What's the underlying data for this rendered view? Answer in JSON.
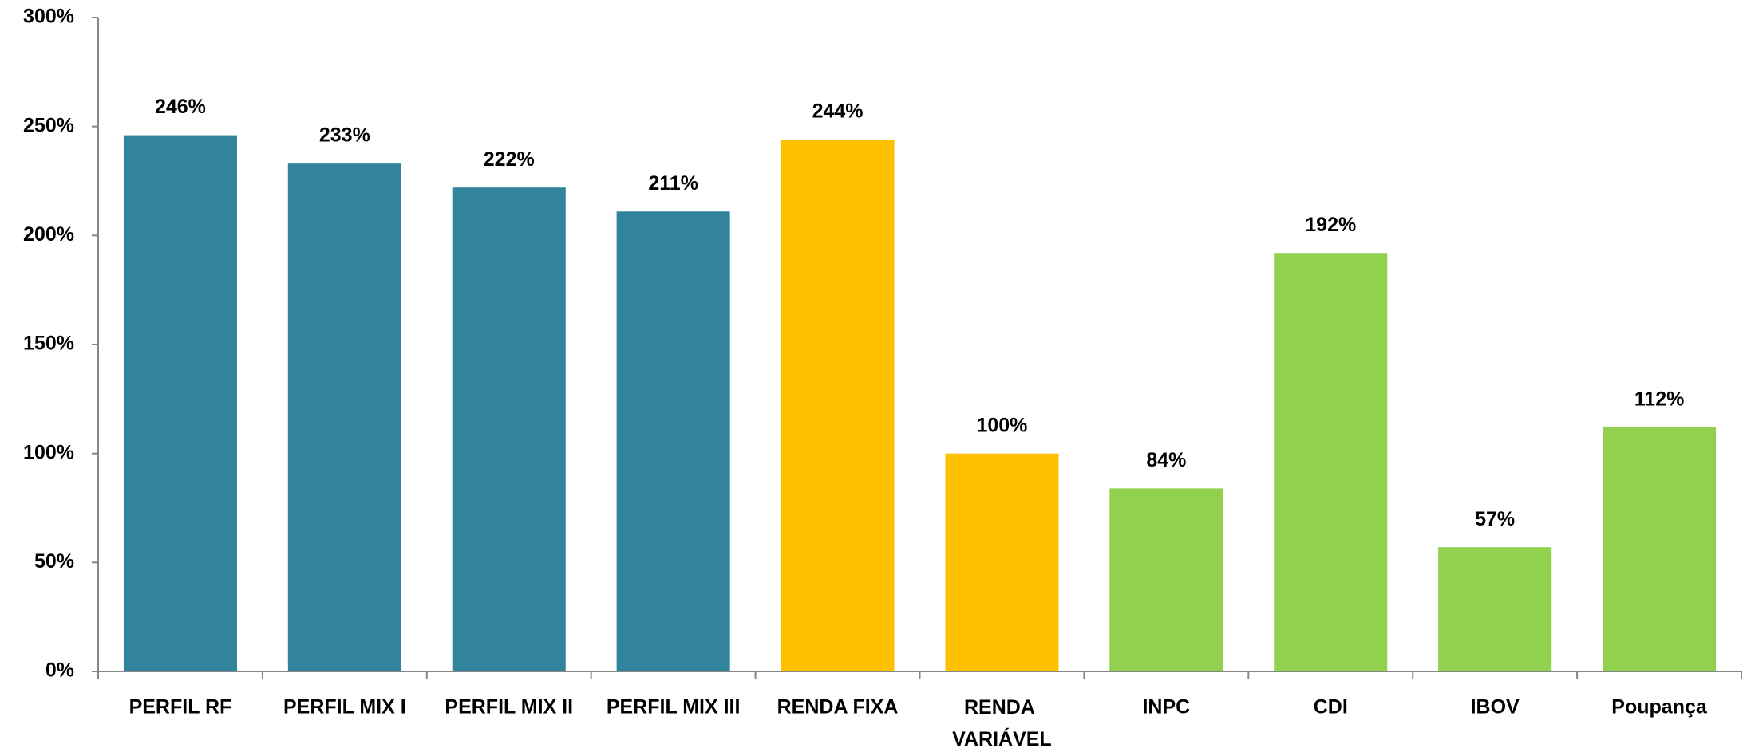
{
  "chart_data": {
    "type": "bar",
    "categories": [
      "PERFIL RF",
      "PERFIL MIX I",
      "PERFIL MIX II",
      "PERFIL MIX III",
      "RENDA FIXA",
      "RENDA VARIÁVEL",
      "INPC",
      "CDI",
      "IBOV",
      "Poupança"
    ],
    "values": [
      246,
      233,
      222,
      211,
      244,
      100,
      84,
      192,
      57,
      112
    ],
    "value_labels": [
      "246%",
      "233%",
      "222%",
      "211%",
      "244%",
      "100%",
      "84%",
      "192%",
      "57%",
      "112%"
    ],
    "colors": [
      "#31849b",
      "#31849b",
      "#31849b",
      "#31849b",
      "#ffc000",
      "#ffc000",
      "#92d050",
      "#92d050",
      "#92d050",
      "#92d050"
    ],
    "ylim": [
      0,
      300
    ],
    "yticks": [
      {
        "value": 0,
        "label": "0%"
      },
      {
        "value": 50,
        "label": "50%"
      },
      {
        "value": 100,
        "label": "100%"
      },
      {
        "value": 150,
        "label": "150%"
      },
      {
        "value": 200,
        "label": "200%"
      },
      {
        "value": 250,
        "label": "250%"
      },
      {
        "value": 300,
        "label": "300%"
      }
    ],
    "grid": false
  }
}
